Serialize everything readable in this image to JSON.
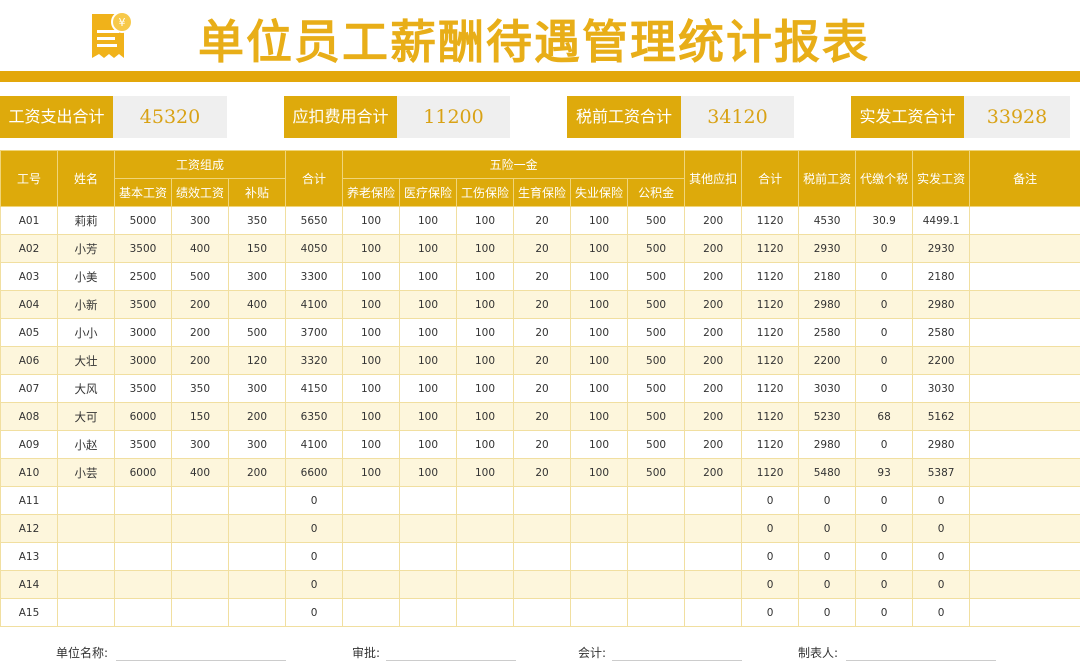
{
  "title": "单位员工薪酬待遇管理统计报表",
  "logo_icon": "receipt-yen-icon",
  "summary": [
    {
      "label": "工资支出合计",
      "value": "45320"
    },
    {
      "label": "应扣费用合计",
      "value": "11200"
    },
    {
      "label": "税前工资合计",
      "value": "34120"
    },
    {
      "label": "实发工资合计",
      "value": "33928"
    }
  ],
  "table": {
    "headers": {
      "id": "工号",
      "name": "姓名",
      "salary_group": "工资组成",
      "base": "基本工资",
      "performance": "绩效工资",
      "allowance": "补贴",
      "total": "合计",
      "insurance_group": "五险一金",
      "pension": "养老保险",
      "medical": "医疗保险",
      "injury": "工伤保险",
      "maternity": "生育保险",
      "unemployment": "失业保险",
      "housing": "公积金",
      "other": "其他应扣",
      "deduct_total": "合计",
      "pretax": "税前工资",
      "tax": "代缴个税",
      "net": "实发工资",
      "remark": "备注"
    },
    "rows": [
      [
        "A01",
        "莉莉",
        "5000",
        "300",
        "350",
        "5650",
        "100",
        "100",
        "100",
        "20",
        "100",
        "500",
        "200",
        "1120",
        "4530",
        "30.9",
        "4499.1",
        ""
      ],
      [
        "A02",
        "小芳",
        "3500",
        "400",
        "150",
        "4050",
        "100",
        "100",
        "100",
        "20",
        "100",
        "500",
        "200",
        "1120",
        "2930",
        "0",
        "2930",
        ""
      ],
      [
        "A03",
        "小美",
        "2500",
        "500",
        "300",
        "3300",
        "100",
        "100",
        "100",
        "20",
        "100",
        "500",
        "200",
        "1120",
        "2180",
        "0",
        "2180",
        ""
      ],
      [
        "A04",
        "小新",
        "3500",
        "200",
        "400",
        "4100",
        "100",
        "100",
        "100",
        "20",
        "100",
        "500",
        "200",
        "1120",
        "2980",
        "0",
        "2980",
        ""
      ],
      [
        "A05",
        "小小",
        "3000",
        "200",
        "500",
        "3700",
        "100",
        "100",
        "100",
        "20",
        "100",
        "500",
        "200",
        "1120",
        "2580",
        "0",
        "2580",
        ""
      ],
      [
        "A06",
        "大壮",
        "3000",
        "200",
        "120",
        "3320",
        "100",
        "100",
        "100",
        "20",
        "100",
        "500",
        "200",
        "1120",
        "2200",
        "0",
        "2200",
        ""
      ],
      [
        "A07",
        "大风",
        "3500",
        "350",
        "300",
        "4150",
        "100",
        "100",
        "100",
        "20",
        "100",
        "500",
        "200",
        "1120",
        "3030",
        "0",
        "3030",
        ""
      ],
      [
        "A08",
        "大可",
        "6000",
        "150",
        "200",
        "6350",
        "100",
        "100",
        "100",
        "20",
        "100",
        "500",
        "200",
        "1120",
        "5230",
        "68",
        "5162",
        ""
      ],
      [
        "A09",
        "小赵",
        "3500",
        "300",
        "300",
        "4100",
        "100",
        "100",
        "100",
        "20",
        "100",
        "500",
        "200",
        "1120",
        "2980",
        "0",
        "2980",
        ""
      ],
      [
        "A10",
        "小芸",
        "6000",
        "400",
        "200",
        "6600",
        "100",
        "100",
        "100",
        "20",
        "100",
        "500",
        "200",
        "1120",
        "5480",
        "93",
        "5387",
        ""
      ],
      [
        "A11",
        "",
        "",
        "",
        "",
        "0",
        "",
        "",
        "",
        "",
        "",
        "",
        "",
        "0",
        "0",
        "0",
        "0",
        ""
      ],
      [
        "A12",
        "",
        "",
        "",
        "",
        "0",
        "",
        "",
        "",
        "",
        "",
        "",
        "",
        "0",
        "0",
        "0",
        "0",
        ""
      ],
      [
        "A13",
        "",
        "",
        "",
        "",
        "0",
        "",
        "",
        "",
        "",
        "",
        "",
        "",
        "0",
        "0",
        "0",
        "0",
        ""
      ],
      [
        "A14",
        "",
        "",
        "",
        "",
        "0",
        "",
        "",
        "",
        "",
        "",
        "",
        "",
        "0",
        "0",
        "0",
        "0",
        ""
      ],
      [
        "A15",
        "",
        "",
        "",
        "",
        "0",
        "",
        "",
        "",
        "",
        "",
        "",
        "",
        "0",
        "0",
        "0",
        "0",
        ""
      ]
    ]
  },
  "footer": {
    "unit": "单位名称:",
    "approve": "审批:",
    "accountant": "会计:",
    "maker": "制表人:"
  },
  "colors": {
    "gold": "#deaa0c",
    "title": "#e8ae18",
    "stripe": "#fdf6dc"
  }
}
